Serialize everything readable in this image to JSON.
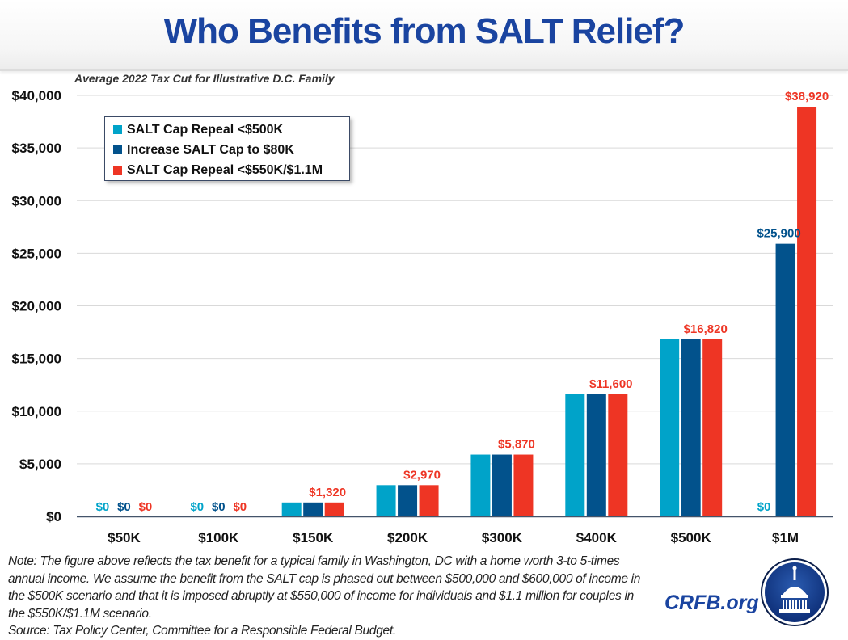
{
  "header": {
    "title": "Who Benefits from SALT Relief?",
    "subtitle": "Average 2022 Tax Cut for Illustrative D.C. Family"
  },
  "colors": {
    "title": "#1a44a0",
    "series_light_blue": "#00a3c9",
    "series_dark_blue": "#02528c",
    "series_red": "#ee3524",
    "grid": "#d9d9d9",
    "axis": "#44546a"
  },
  "chart_data": {
    "type": "bar",
    "title": "Who Benefits from SALT Relief?",
    "subtitle": "Average 2022 Tax Cut for Illustrative D.C. Family",
    "xlabel": "",
    "ylabel": "",
    "ylim": [
      0,
      40000
    ],
    "yticks": [
      0,
      5000,
      10000,
      15000,
      20000,
      25000,
      30000,
      35000,
      40000
    ],
    "ytick_labels": [
      "$0",
      "$5,000",
      "$10,000",
      "$15,000",
      "$20,000",
      "$25,000",
      "$30,000",
      "$35,000",
      "$40,000"
    ],
    "grid": true,
    "legend_position": "top-left",
    "categories": [
      "$50K",
      "$100K",
      "$150K",
      "$200K",
      "$300K",
      "$400K",
      "$500K",
      "$1M"
    ],
    "series": [
      {
        "name": "SALT Cap Repeal <$500K",
        "color": "#00a3c9",
        "values": [
          0,
          0,
          1320,
          2970,
          5870,
          11600,
          16820,
          0
        ]
      },
      {
        "name": "Increase SALT Cap to $80K",
        "color": "#02528c",
        "values": [
          0,
          0,
          1320,
          2970,
          5870,
          11600,
          16820,
          25900
        ]
      },
      {
        "name": "SALT Cap Repeal <$550K/$1.1M",
        "color": "#ee3524",
        "values": [
          0,
          0,
          1320,
          2970,
          5870,
          11600,
          16820,
          38920
        ]
      }
    ],
    "data_labels": [
      {
        "category": "$50K",
        "series": 0,
        "text": "$0"
      },
      {
        "category": "$50K",
        "series": 1,
        "text": "$0"
      },
      {
        "category": "$50K",
        "series": 2,
        "text": "$0"
      },
      {
        "category": "$100K",
        "series": 0,
        "text": "$0"
      },
      {
        "category": "$100K",
        "series": 1,
        "text": "$0"
      },
      {
        "category": "$100K",
        "series": 2,
        "text": "$0"
      },
      {
        "category": "$150K",
        "series": 2,
        "text": "$1,320"
      },
      {
        "category": "$200K",
        "series": 2,
        "text": "$2,970"
      },
      {
        "category": "$300K",
        "series": 2,
        "text": "$5,870"
      },
      {
        "category": "$400K",
        "series": 2,
        "text": "$11,600"
      },
      {
        "category": "$500K",
        "series": 2,
        "text": "$16,820"
      },
      {
        "category": "$1M",
        "series": 0,
        "text": "$0"
      },
      {
        "category": "$1M",
        "series": 1,
        "text": "$25,900"
      },
      {
        "category": "$1M",
        "series": 2,
        "text": "$38,920"
      }
    ]
  },
  "legend": {
    "items": [
      {
        "label": "SALT Cap Repeal <$500K"
      },
      {
        "label": "Increase SALT Cap to $80K"
      },
      {
        "label": "SALT Cap Repeal <$550K/$1.1M"
      }
    ]
  },
  "footer": {
    "note": "Note: The figure above reflects the tax benefit for a typical family in Washington, DC with a home worth 3-to 5-times annual income. We assume the benefit from the SALT cap is phased out between $500,000 and $600,000 of income in the $500K scenario and that it is imposed abruptly at $550,000 of income for individuals and $1.1 million for couples in the $550K/$1.1M scenario.",
    "source": "Source: Tax Policy Center, Committee for a Responsible Federal Budget.",
    "brand": "CRFB.org",
    "logo_icon": "capitol-dome-icon"
  }
}
